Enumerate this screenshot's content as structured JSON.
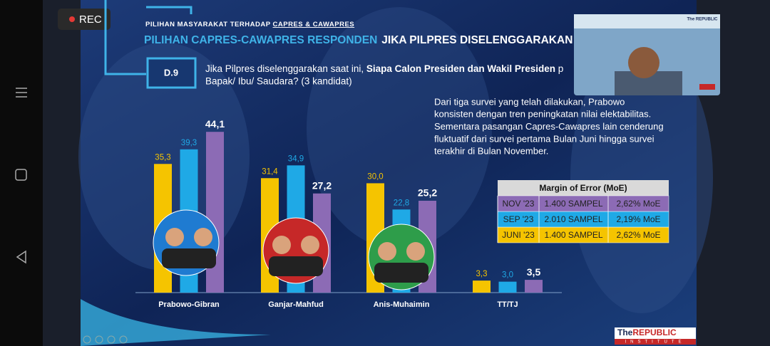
{
  "rec": "REC",
  "subheader": [
    "PILIHAN MASYARAKAT TERHADAP ",
    "CAPRES & CAWAPRES"
  ],
  "title": [
    "PILIHAN CAPRES-CAWAPRES  RESPONDEN",
    "JIKA PILPRES DISELENGGARAKAN"
  ],
  "code": "D.9",
  "question": [
    "Jika Pilpres diselenggarakan saat ini, ",
    "Siapa Calon Presiden dan Wakil Presiden",
    " p",
    "Bapak/ Ibu/ Saudara? (3 kandidat)"
  ],
  "paragraph": [
    "Dari tiga survei yang telah dilakukan, Prabowo",
    "konsisten dengan tren peningkatan nilai elektabilitas.",
    "Sementara pasangan Capres-Cawapres lain cenderung",
    "fluktuatif dari survei pertama Bulan Juni hingga survei",
    "terakhir di Bulan November."
  ],
  "logo": [
    "The",
    "REPUBLIC",
    "INSTITUTE"
  ],
  "webcam_logo": "The REPUBLIC",
  "chart_data": {
    "type": "bar",
    "categories": [
      "Prabowo-Gibran",
      "Ganjar-Mahfud",
      "Anis-Muhaimin",
      "TT/TJ"
    ],
    "series": [
      {
        "name": "JUNI '23",
        "color": "#f5c400",
        "sample": "1.400 SAMPEL",
        "moe": "2,62% MoE",
        "values": [
          35.3,
          31.4,
          30.0,
          3.3
        ],
        "value_labels": [
          "35,3",
          "31,4",
          "30,0",
          "3,3"
        ]
      },
      {
        "name": "SEP '23",
        "color": "#1fa9e6",
        "sample": "2.010 SAMPEL",
        "moe": "2,19% MoE",
        "values": [
          39.3,
          34.9,
          22.8,
          3.0
        ],
        "value_labels": [
          "39,3",
          "34,9",
          "22,8",
          "3,0"
        ]
      },
      {
        "name": "NOV '23",
        "color": "#8c6bb5",
        "sample": "1.400 SAMPEL",
        "moe": "2,62% MoE",
        "values": [
          44.1,
          27.2,
          25.2,
          3.5
        ],
        "value_labels": [
          "44,1",
          "27,2",
          "25,2",
          "3,5"
        ]
      }
    ],
    "legend_title": "Margin of Error (MoE)"
  }
}
